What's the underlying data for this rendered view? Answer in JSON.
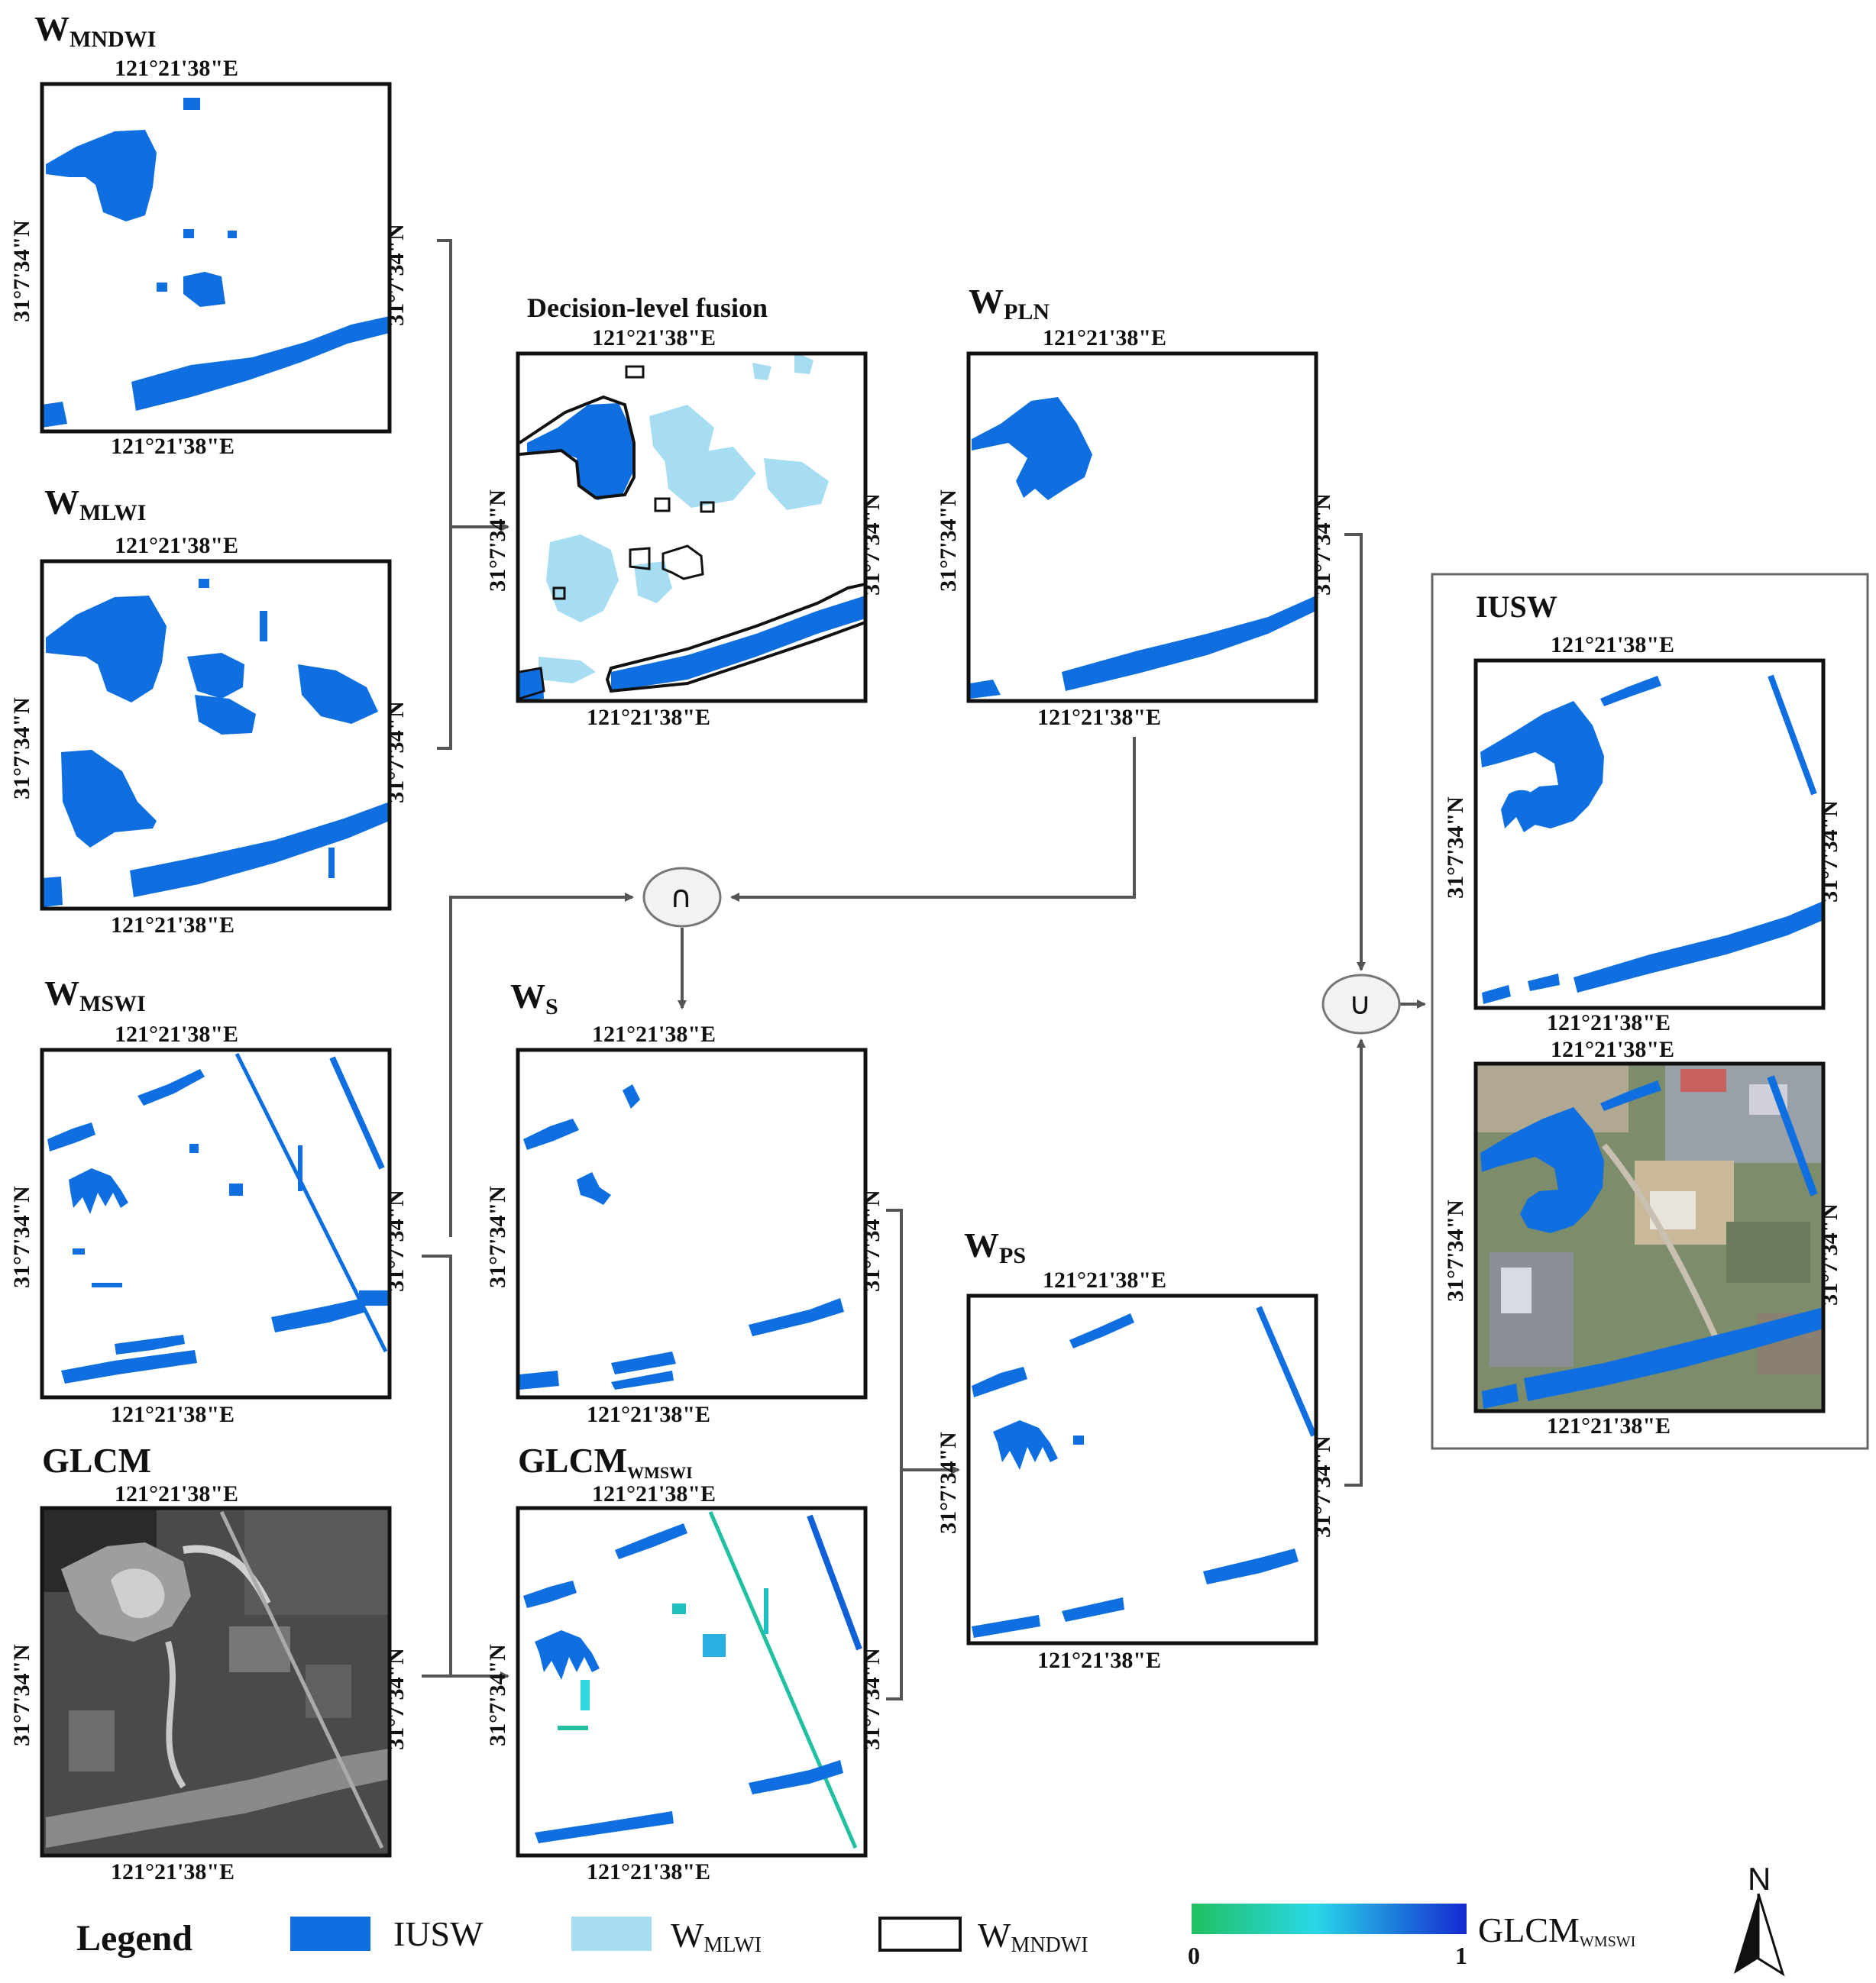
{
  "panels": [
    {
      "id": "mndwi",
      "title_main": "W",
      "title_sub": "MNDWI"
    },
    {
      "id": "mlwi",
      "title_main": "W",
      "title_sub": "MLWI"
    },
    {
      "id": "mswi",
      "title_main": "W",
      "title_sub": "MSWI"
    },
    {
      "id": "glcm",
      "title_main": "GLCM",
      "title_sub": ""
    },
    {
      "id": "fusion",
      "title_main": "Decision-level fusion",
      "title_sub": ""
    },
    {
      "id": "ws",
      "title_main": "W",
      "title_sub": "S"
    },
    {
      "id": "glcm-wmswi",
      "title_main": "GLCM",
      "title_sub": "WMSWI"
    },
    {
      "id": "wpln",
      "title_main": "W",
      "title_sub": "PLN"
    },
    {
      "id": "wps",
      "title_main": "W",
      "title_sub": "PS"
    },
    {
      "id": "iusw",
      "title_main": "IUSW",
      "title_sub": ""
    }
  ],
  "coords": {
    "lon": "121°21'38\"E",
    "lat": "31°7'34\"N"
  },
  "operators": {
    "intersection": "∩",
    "union": "∪"
  },
  "legend": {
    "title": "Legend",
    "iusw": "IUSW",
    "mlwi_main": "W",
    "mlwi_sub": "MLWI",
    "mndwi_main": "W",
    "mndwi_sub": "MNDWI",
    "ramp_min": "0",
    "ramp_max": "1",
    "glcm_main": "GLCM",
    "glcm_sub": "WMSWI"
  },
  "north": "N",
  "colors": {
    "water": "#0f6fe0",
    "mlwi": "#a6ddf2",
    "frame": "#111111",
    "arrow": "#555555",
    "ramp_start": "#20c060",
    "ramp_mid": "#28d8e8",
    "ramp_end": "#1428d0"
  }
}
